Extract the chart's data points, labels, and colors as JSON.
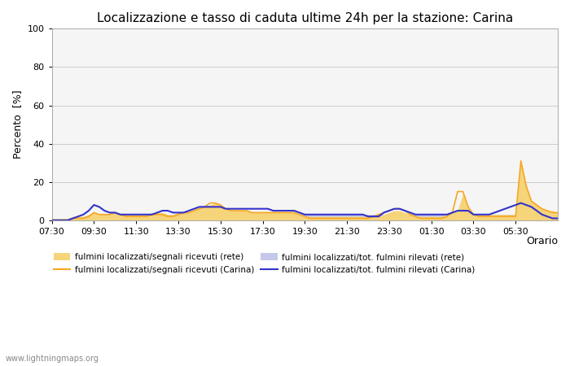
{
  "title": "Localizzazione e tasso di caduta ultime 24h per la stazione: Carina",
  "ylabel": "Percento  [%]",
  "xlabel": "Orario",
  "ylim": [
    0,
    100
  ],
  "yticks": [
    0,
    20,
    40,
    60,
    80,
    100
  ],
  "x_labels": [
    "07:30",
    "09:30",
    "11:30",
    "13:30",
    "15:30",
    "17:30",
    "19:30",
    "21:30",
    "23:30",
    "01:30",
    "03:30",
    "05:30"
  ],
  "background_color": "#ffffff",
  "plot_bg_color": "#f5f5f5",
  "watermark": "www.lightningmaps.org",
  "colors": {
    "rete_segnali_fill": "#f5d47a",
    "carina_segnali_line": "#f5a623",
    "rete_rilevati_fill": "#c5c8e8",
    "carina_rilevati_line": "#3333cc"
  },
  "time_hours": [
    7.5,
    7.75,
    8.0,
    8.25,
    8.5,
    8.75,
    9.0,
    9.25,
    9.5,
    9.75,
    10.0,
    10.25,
    10.5,
    10.75,
    11.0,
    11.25,
    11.5,
    11.75,
    12.0,
    12.25,
    12.5,
    12.75,
    13.0,
    13.25,
    13.5,
    13.75,
    14.0,
    14.25,
    14.5,
    14.75,
    15.0,
    15.25,
    15.5,
    15.75,
    16.0,
    16.25,
    16.5,
    16.75,
    17.0,
    17.25,
    17.5,
    17.75,
    18.0,
    18.25,
    18.5,
    18.75,
    19.0,
    19.25,
    19.5,
    19.75,
    20.0,
    20.25,
    20.5,
    20.75,
    21.0,
    21.25,
    21.5,
    21.75,
    22.0,
    22.25,
    22.5,
    22.75,
    23.0,
    23.25,
    23.5,
    23.75,
    24.0,
    24.25,
    24.5,
    24.75,
    25.0,
    25.25,
    25.5,
    25.75,
    26.0,
    26.25,
    26.5,
    26.75,
    27.0,
    27.25,
    27.5,
    27.75,
    28.0,
    28.25,
    28.5,
    28.75,
    29.0,
    29.25,
    29.5,
    29.75,
    30.0,
    30.25,
    30.5,
    30.75,
    31.0,
    31.25,
    31.5
  ],
  "rete_segnali": [
    1,
    1,
    1,
    1,
    2,
    2,
    2,
    3,
    4,
    3,
    3,
    3,
    4,
    3,
    3,
    3,
    3,
    3,
    3,
    4,
    4,
    4,
    3,
    3,
    4,
    4,
    4,
    5,
    6,
    7,
    8,
    9,
    8,
    6,
    5,
    5,
    5,
    5,
    4,
    4,
    4,
    4,
    4,
    4,
    4,
    4,
    4,
    3,
    2,
    2,
    2,
    2,
    2,
    2,
    2,
    2,
    2,
    2,
    2,
    2,
    2,
    2,
    2,
    3,
    4,
    5,
    5,
    4,
    3,
    2,
    2,
    2,
    2,
    2,
    2,
    3,
    4,
    5,
    14,
    6,
    3,
    3,
    3,
    3,
    3,
    3,
    3,
    3,
    3,
    31,
    18,
    10,
    8,
    6,
    5,
    5,
    4
  ],
  "carina_segnali": [
    0,
    0,
    0,
    0,
    1,
    1,
    1,
    2,
    4,
    3,
    3,
    3,
    4,
    3,
    2,
    2,
    2,
    2,
    2,
    3,
    3,
    3,
    2,
    2,
    3,
    4,
    4,
    5,
    6,
    7,
    9,
    9,
    8,
    6,
    5,
    5,
    5,
    5,
    4,
    4,
    4,
    4,
    4,
    4,
    4,
    4,
    4,
    3,
    2,
    1,
    1,
    1,
    1,
    1,
    1,
    1,
    1,
    1,
    1,
    1,
    1,
    2,
    3,
    4,
    5,
    6,
    6,
    5,
    3,
    2,
    1,
    1,
    1,
    1,
    1,
    2,
    4,
    15,
    15,
    7,
    3,
    2,
    2,
    2,
    2,
    2,
    2,
    2,
    2,
    31,
    18,
    10,
    8,
    6,
    5,
    4,
    4
  ],
  "rete_rilevati": [
    1,
    1,
    1,
    1,
    1,
    1,
    2,
    2,
    3,
    3,
    3,
    3,
    3,
    3,
    3,
    3,
    3,
    3,
    3,
    3,
    3,
    3,
    3,
    3,
    3,
    3,
    3,
    3,
    3,
    3,
    4,
    5,
    5,
    4,
    4,
    4,
    4,
    4,
    3,
    3,
    3,
    3,
    3,
    3,
    3,
    3,
    3,
    3,
    3,
    3,
    3,
    3,
    3,
    3,
    3,
    3,
    3,
    3,
    3,
    3,
    3,
    3,
    3,
    3,
    3,
    3,
    3,
    3,
    3,
    3,
    3,
    3,
    3,
    3,
    3,
    3,
    3,
    3,
    3,
    3,
    3,
    3,
    3,
    3,
    3,
    3,
    3,
    3,
    3,
    3,
    3,
    3,
    3,
    3,
    3,
    3,
    3
  ],
  "carina_rilevati": [
    0,
    0,
    0,
    0,
    1,
    2,
    3,
    5,
    8,
    7,
    5,
    4,
    4,
    3,
    3,
    3,
    3,
    3,
    3,
    3,
    4,
    5,
    5,
    4,
    4,
    4,
    5,
    6,
    7,
    7,
    7,
    7,
    7,
    6,
    6,
    6,
    6,
    6,
    6,
    6,
    6,
    6,
    5,
    5,
    5,
    5,
    5,
    4,
    3,
    3,
    3,
    3,
    3,
    3,
    3,
    3,
    3,
    3,
    3,
    3,
    2,
    2,
    2,
    4,
    5,
    6,
    6,
    5,
    4,
    3,
    3,
    3,
    3,
    3,
    3,
    3,
    4,
    5,
    5,
    5,
    3,
    3,
    3,
    3,
    4,
    5,
    6,
    7,
    8,
    9,
    8,
    7,
    5,
    3,
    2,
    1,
    1
  ]
}
